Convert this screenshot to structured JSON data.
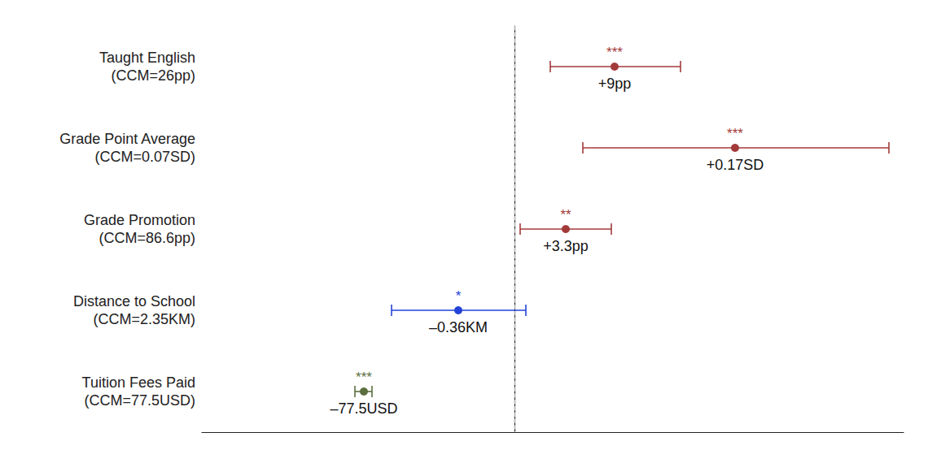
{
  "chart_data": {
    "type": "forest",
    "orientation": "horizontal",
    "categories": [
      "Taught English\n(CCM=26pp)",
      "Grade Point Average\n(CCM=0.07SD)",
      "Grade Promotion\n(CCM=86.6pp)",
      "Distance to School\n(CCM=2.35KM)",
      "Tuition Fees Paid\n(CCM=77.5USD)"
    ],
    "values": [
      1.23,
      2.71,
      0.63,
      -0.69,
      -1.85
    ],
    "ci_low": [
      0.44,
      0.84,
      0.07,
      -1.51,
      -1.96
    ],
    "ci_high": [
      2.04,
      4.6,
      1.19,
      0.14,
      -1.75
    ],
    "annotations": [
      "+9pp",
      "+0.17SD",
      "+3.3pp",
      "–0.36KM",
      "–77.5USD"
    ],
    "significance": [
      "***",
      "***",
      "**",
      "*",
      "***"
    ],
    "colors": [
      "#a33a3a",
      "#a33a3a",
      "#a33a3a",
      "#2343d8",
      "#5b6e3f"
    ],
    "reference_line": 0,
    "xlim": [
      -3.84,
      4.78
    ],
    "grid": false,
    "tick_labels": false
  }
}
